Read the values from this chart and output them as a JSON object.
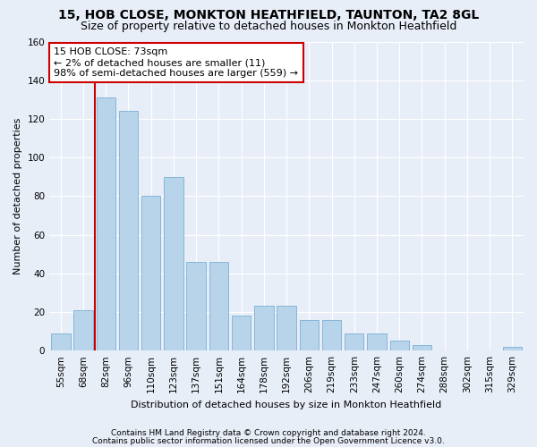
{
  "title": "15, HOB CLOSE, MONKTON HEATHFIELD, TAUNTON, TA2 8GL",
  "subtitle": "Size of property relative to detached houses in Monkton Heathfield",
  "xlabel": "Distribution of detached houses by size in Monkton Heathfield",
  "ylabel": "Number of detached properties",
  "categories": [
    "55sqm",
    "68sqm",
    "82sqm",
    "96sqm",
    "110sqm",
    "123sqm",
    "137sqm",
    "151sqm",
    "164sqm",
    "178sqm",
    "192sqm",
    "206sqm",
    "219sqm",
    "233sqm",
    "247sqm",
    "260sqm",
    "274sqm",
    "288sqm",
    "302sqm",
    "315sqm",
    "329sqm"
  ],
  "values": [
    9,
    21,
    131,
    124,
    80,
    90,
    46,
    46,
    18,
    23,
    23,
    16,
    16,
    9,
    9,
    5,
    3,
    0,
    0,
    0,
    2
  ],
  "bar_color": "#b8d4ea",
  "bar_edge_color": "#7aafd4",
  "vline_color": "#cc0000",
  "annotation_text": "15 HOB CLOSE: 73sqm\n← 2% of detached houses are smaller (11)\n98% of semi-detached houses are larger (559) →",
  "annotation_box_color": "#ffffff",
  "annotation_box_edge": "#cc0000",
  "ylim": [
    0,
    160
  ],
  "yticks": [
    0,
    20,
    40,
    60,
    80,
    100,
    120,
    140,
    160
  ],
  "footer1": "Contains HM Land Registry data © Crown copyright and database right 2024.",
  "footer2": "Contains public sector information licensed under the Open Government Licence v3.0.",
  "bg_color": "#e8eef8",
  "plot_bg_color": "#e8eef8",
  "grid_color": "#ffffff",
  "title_fontsize": 10,
  "subtitle_fontsize": 9,
  "axis_label_fontsize": 8,
  "tick_fontsize": 7.5,
  "footer_fontsize": 6.5,
  "annotation_fontsize": 8
}
